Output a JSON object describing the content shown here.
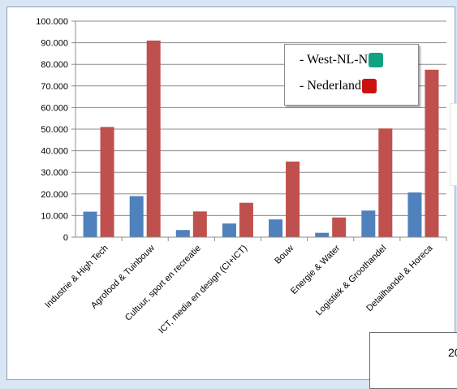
{
  "chart_data": {
    "type": "bar",
    "categories": [
      "Industrie & High Tech",
      "Agrofood & Tuinbouw",
      "Cultuur, sport en recreatie",
      "ICT, media en design (CI+ICT)",
      "Bouw",
      "Energie & Water",
      "Logistiek & Groothandel",
      "Detailhandel & Horeca"
    ],
    "series": [
      {
        "name": "West-NL-N",
        "color": "#4f81bd",
        "values": [
          11800,
          19000,
          3300,
          6300,
          8200,
          2000,
          12300,
          20700
        ]
      },
      {
        "name": "Nederland",
        "color": "#c0504d",
        "values": [
          51000,
          91000,
          11900,
          15900,
          35000,
          9100,
          50300,
          77500
        ]
      }
    ],
    "ylim": [
      0,
      100000
    ],
    "yticks": [
      "0",
      "10.000",
      "20.000",
      "30.000",
      "40.000",
      "50.000",
      "60.000",
      "70.000",
      "80.000",
      "90.000",
      "100.000"
    ],
    "grid": true,
    "legend": {
      "position": "top-right",
      "items": [
        {
          "label": "- West-NL-N",
          "swatch_color": "#10a37f"
        },
        {
          "label": "- Nederland",
          "swatch_color": "#cc1111"
        }
      ]
    },
    "xlabel": "",
    "ylabel": ""
  },
  "footer_text": "20"
}
